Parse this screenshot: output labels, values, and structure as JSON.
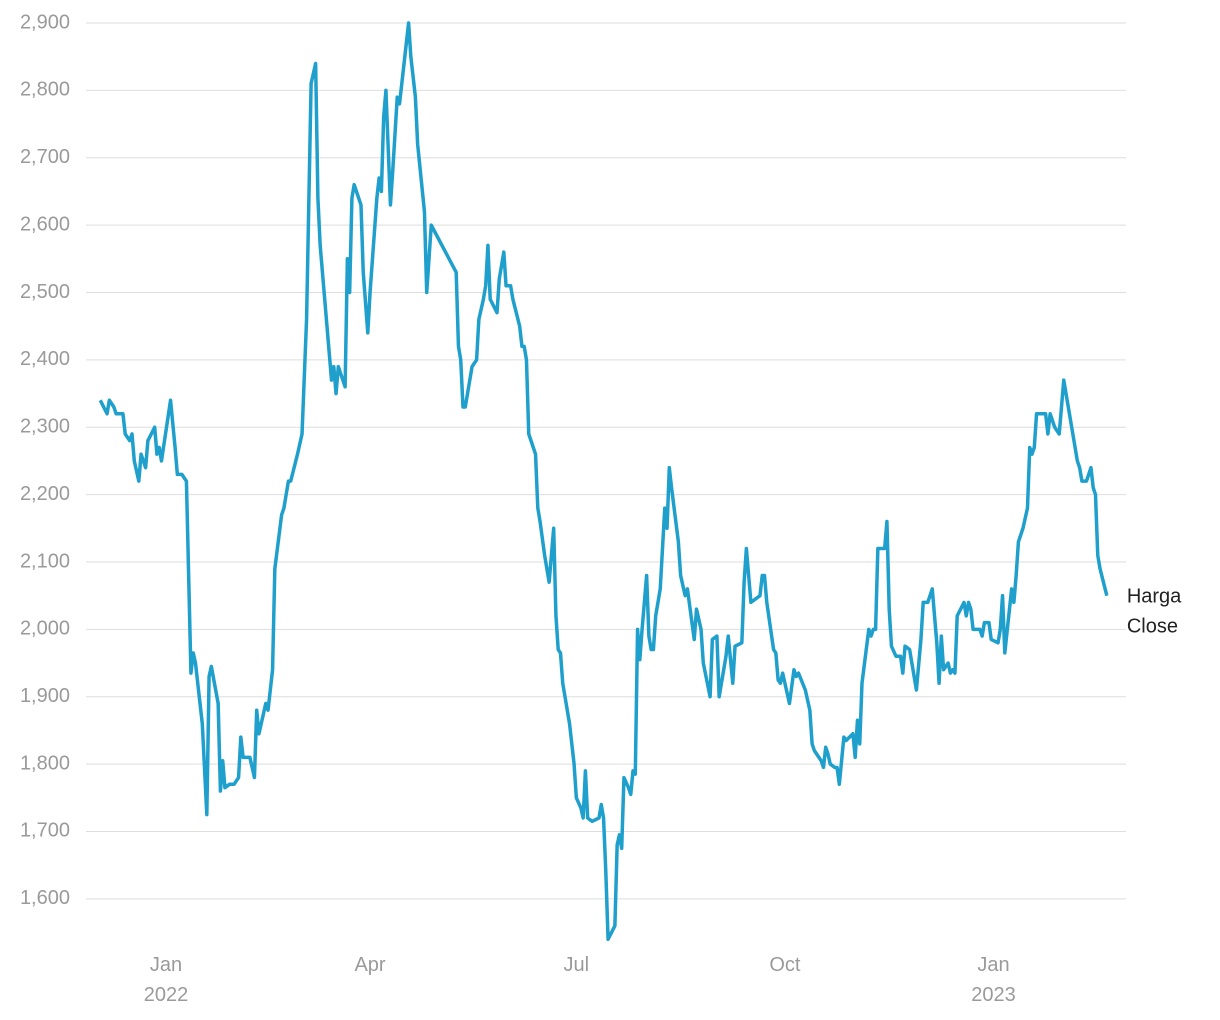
{
  "chart_data": {
    "type": "line",
    "x": [
      "2021-12-03",
      "2021-12-06",
      "2021-12-07",
      "2021-12-09",
      "2021-12-10",
      "2021-12-13",
      "2021-12-14",
      "2021-12-16",
      "2021-12-17",
      "2021-12-18",
      "2021-12-20",
      "2021-12-21",
      "2021-12-23",
      "2021-12-24",
      "2021-12-27",
      "2021-12-28",
      "2021-12-29",
      "2021-12-30",
      "2022-01-03",
      "2022-01-05",
      "2022-01-06",
      "2022-01-08",
      "2022-01-10",
      "2022-01-12",
      "2022-01-13",
      "2022-01-14",
      "2022-01-17",
      "2022-01-19",
      "2022-01-20",
      "2022-01-21",
      "2022-01-24",
      "2022-01-25",
      "2022-01-26",
      "2022-01-27",
      "2022-01-29",
      "2022-01-31",
      "2022-02-02",
      "2022-02-03",
      "2022-02-04",
      "2022-02-07",
      "2022-02-09",
      "2022-02-10",
      "2022-02-11",
      "2022-02-14",
      "2022-02-15",
      "2022-02-17",
      "2022-02-18",
      "2022-02-21",
      "2022-02-22",
      "2022-02-24",
      "2022-02-25",
      "2022-02-28",
      "2022-03-02",
      "2022-03-04",
      "2022-03-06",
      "2022-03-08",
      "2022-03-09",
      "2022-03-10",
      "2022-03-13",
      "2022-03-15",
      "2022-03-16",
      "2022-03-17",
      "2022-03-18",
      "2022-03-21",
      "2022-03-22",
      "2022-03-23",
      "2022-03-24",
      "2022-03-25",
      "2022-03-28",
      "2022-03-29",
      "2022-03-31",
      "2022-04-01",
      "2022-04-04",
      "2022-04-05",
      "2022-04-06",
      "2022-04-07",
      "2022-04-08",
      "2022-04-10",
      "2022-04-11",
      "2022-04-13",
      "2022-04-14",
      "2022-04-18",
      "2022-04-19",
      "2022-04-21",
      "2022-04-22",
      "2022-04-25",
      "2022-04-26",
      "2022-04-28",
      "2022-05-09",
      "2022-05-10",
      "2022-05-11",
      "2022-05-12",
      "2022-05-13",
      "2022-05-16",
      "2022-05-18",
      "2022-05-19",
      "2022-05-21",
      "2022-05-22",
      "2022-05-23",
      "2022-05-24",
      "2022-05-27",
      "2022-05-28",
      "2022-05-30",
      "2022-05-31",
      "2022-06-02",
      "2022-06-03",
      "2022-06-06",
      "2022-06-07",
      "2022-06-08",
      "2022-06-09",
      "2022-06-10",
      "2022-06-12",
      "2022-06-13",
      "2022-06-14",
      "2022-06-15",
      "2022-06-17",
      "2022-06-18",
      "2022-06-19",
      "2022-06-21",
      "2022-06-22",
      "2022-06-23",
      "2022-06-24",
      "2022-06-25",
      "2022-06-28",
      "2022-06-30",
      "2022-07-01",
      "2022-07-03",
      "2022-07-04",
      "2022-07-05",
      "2022-07-06",
      "2022-07-08",
      "2022-07-11",
      "2022-07-12",
      "2022-07-13",
      "2022-07-14",
      "2022-07-15",
      "2022-07-18",
      "2022-07-19",
      "2022-07-20",
      "2022-07-21",
      "2022-07-22",
      "2022-07-24",
      "2022-07-25",
      "2022-07-26",
      "2022-07-27",
      "2022-07-28",
      "2022-07-29",
      "2022-07-30",
      "2022-08-01",
      "2022-08-02",
      "2022-08-03",
      "2022-08-04",
      "2022-08-05",
      "2022-08-07",
      "2022-08-09",
      "2022-08-10",
      "2022-08-11",
      "2022-08-12",
      "2022-08-15",
      "2022-08-16",
      "2022-08-18",
      "2022-08-19",
      "2022-08-21",
      "2022-08-22",
      "2022-08-23",
      "2022-08-25",
      "2022-08-26",
      "2022-08-29",
      "2022-08-30",
      "2022-09-01",
      "2022-09-02",
      "2022-09-05",
      "2022-09-06",
      "2022-09-08",
      "2022-09-09",
      "2022-09-12",
      "2022-09-13",
      "2022-09-14",
      "2022-09-16",
      "2022-09-20",
      "2022-09-21",
      "2022-09-22",
      "2022-09-23",
      "2022-09-26",
      "2022-09-27",
      "2022-09-28",
      "2022-09-29",
      "2022-09-30",
      "2022-10-03",
      "2022-10-05",
      "2022-10-06",
      "2022-10-07",
      "2022-10-10",
      "2022-10-12",
      "2022-10-13",
      "2022-10-14",
      "2022-10-17",
      "2022-10-18",
      "2022-10-19",
      "2022-10-20",
      "2022-10-21",
      "2022-10-23",
      "2022-10-24",
      "2022-10-25",
      "2022-10-27",
      "2022-10-28",
      "2022-10-31",
      "2022-11-01",
      "2022-11-02",
      "2022-11-03",
      "2022-11-04",
      "2022-11-07",
      "2022-11-08",
      "2022-11-09",
      "2022-11-10",
      "2022-11-11",
      "2022-11-14",
      "2022-11-15",
      "2022-11-16",
      "2022-11-17",
      "2022-11-19",
      "2022-11-21",
      "2022-11-22",
      "2022-11-23",
      "2022-11-25",
      "2022-11-28",
      "2022-11-30",
      "2022-12-01",
      "2022-12-03",
      "2022-12-05",
      "2022-12-07",
      "2022-12-08",
      "2022-12-09",
      "2022-12-10",
      "2022-12-12",
      "2022-12-13",
      "2022-12-14",
      "2022-12-15",
      "2022-12-16",
      "2022-12-19",
      "2022-12-20",
      "2022-12-21",
      "2022-12-22",
      "2022-12-23",
      "2022-12-26",
      "2022-12-27",
      "2022-12-28",
      "2022-12-30",
      "2022-12-31",
      "2023-01-03",
      "2023-01-04",
      "2023-01-05",
      "2023-01-06",
      "2023-01-09",
      "2023-01-10",
      "2023-01-11",
      "2023-01-12",
      "2023-01-14",
      "2023-01-16",
      "2023-01-17",
      "2023-01-18",
      "2023-01-19",
      "2023-01-20",
      "2023-01-24",
      "2023-01-25",
      "2023-01-26",
      "2023-01-28",
      "2023-01-30",
      "2023-02-01",
      "2023-02-07",
      "2023-02-08",
      "2023-02-09",
      "2023-02-11",
      "2023-02-13",
      "2023-02-14",
      "2023-02-15",
      "2023-02-16",
      "2023-02-17",
      "2023-02-20"
    ],
    "series": [
      {
        "name": "Harga Close",
        "color": "#1f9fcc",
        "values": [
          2340,
          2320,
          2340,
          2330,
          2320,
          2320,
          2290,
          2280,
          2290,
          2250,
          2220,
          2260,
          2240,
          2280,
          2300,
          2260,
          2270,
          2250,
          2340,
          2270,
          2230,
          2230,
          2220,
          1935,
          1965,
          1950,
          1860,
          1725,
          1930,
          1945,
          1890,
          1760,
          1805,
          1765,
          1770,
          1770,
          1780,
          1840,
          1810,
          1810,
          1780,
          1880,
          1845,
          1890,
          1880,
          1940,
          2090,
          2170,
          2180,
          2220,
          2220,
          2260,
          2290,
          2460,
          2810,
          2840,
          2640,
          2570,
          2450,
          2370,
          2390,
          2350,
          2390,
          2360,
          2550,
          2500,
          2640,
          2660,
          2630,
          2530,
          2440,
          2500,
          2640,
          2670,
          2650,
          2760,
          2800,
          2630,
          2680,
          2790,
          2780,
          2900,
          2850,
          2790,
          2720,
          2620,
          2500,
          2600,
          2530,
          2420,
          2400,
          2330,
          2330,
          2390,
          2400,
          2460,
          2490,
          2510,
          2570,
          2490,
          2470,
          2520,
          2560,
          2510,
          2510,
          2490,
          2450,
          2420,
          2420,
          2400,
          2290,
          2270,
          2260,
          2180,
          2160,
          2110,
          2090,
          2070,
          2150,
          2020,
          1970,
          1965,
          1920,
          1860,
          1800,
          1750,
          1735,
          1720,
          1790,
          1720,
          1715,
          1720,
          1740,
          1720,
          1640,
          1540,
          1560,
          1680,
          1695,
          1675,
          1780,
          1765,
          1755,
          1790,
          1785,
          2000,
          1955,
          2000,
          2080,
          1990,
          1970,
          1970,
          2020,
          2060,
          2180,
          2150,
          2240,
          2210,
          2130,
          2080,
          2050,
          2060,
          2010,
          1985,
          2030,
          2000,
          1950,
          1900,
          1985,
          1990,
          1900,
          1960,
          1990,
          1920,
          1975,
          1980,
          2070,
          2120,
          2040,
          2050,
          2080,
          2080,
          2040,
          1970,
          1965,
          1925,
          1920,
          1935,
          1890,
          1940,
          1930,
          1935,
          1910,
          1880,
          1830,
          1820,
          1805,
          1795,
          1825,
          1815,
          1800,
          1795,
          1795,
          1770,
          1840,
          1835,
          1845,
          1810,
          1865,
          1830,
          1920,
          2000,
          1990,
          2000,
          2000,
          2120,
          2120,
          2160,
          2030,
          1975,
          1960,
          1960,
          1935,
          1975,
          1970,
          1910,
          1985,
          2040,
          2040,
          2060,
          1980,
          1920,
          1990,
          1940,
          1950,
          1935,
          1940,
          1935,
          2020,
          2040,
          2020,
          2040,
          2030,
          2000,
          2000,
          1990,
          2010,
          2010,
          1985,
          1980,
          2000,
          2050,
          1965,
          2060,
          2040,
          2080,
          2130,
          2150,
          2180,
          2270,
          2260,
          2270,
          2320,
          2320,
          2290,
          2320,
          2300,
          2290,
          2370,
          2250,
          2240,
          2220,
          2220,
          2240,
          2210,
          2200,
          2110,
          2090,
          2050
        ]
      }
    ],
    "xlim": [
      "2021-11-26",
      "2023-02-27"
    ],
    "xticks": [
      {
        "value": "2022-01-01",
        "label": [
          "Jan",
          "2022"
        ]
      },
      {
        "value": "2022-04-01",
        "label": [
          "Apr"
        ]
      },
      {
        "value": "2022-07-01",
        "label": [
          "Jul"
        ]
      },
      {
        "value": "2022-10-01",
        "label": [
          "Oct"
        ]
      },
      {
        "value": "2023-01-01",
        "label": [
          "Jan",
          "2023"
        ]
      }
    ],
    "ylim": [
      1530,
      2900
    ],
    "yticks": [
      {
        "value": 1600,
        "label": "1,600"
      },
      {
        "value": 1700,
        "label": "1,700"
      },
      {
        "value": 1800,
        "label": "1,800"
      },
      {
        "value": 1900,
        "label": "1,900"
      },
      {
        "value": 2000,
        "label": "2,000"
      },
      {
        "value": 2100,
        "label": "2,100"
      },
      {
        "value": 2200,
        "label": "2,200"
      },
      {
        "value": 2300,
        "label": "2,300"
      },
      {
        "value": 2400,
        "label": "2,400"
      },
      {
        "value": 2500,
        "label": "2,500"
      },
      {
        "value": 2600,
        "label": "2,600"
      },
      {
        "value": 2700,
        "label": "2,700"
      },
      {
        "value": 2800,
        "label": "2,800"
      },
      {
        "value": 2900,
        "label": "2,900"
      }
    ],
    "grid": true
  }
}
